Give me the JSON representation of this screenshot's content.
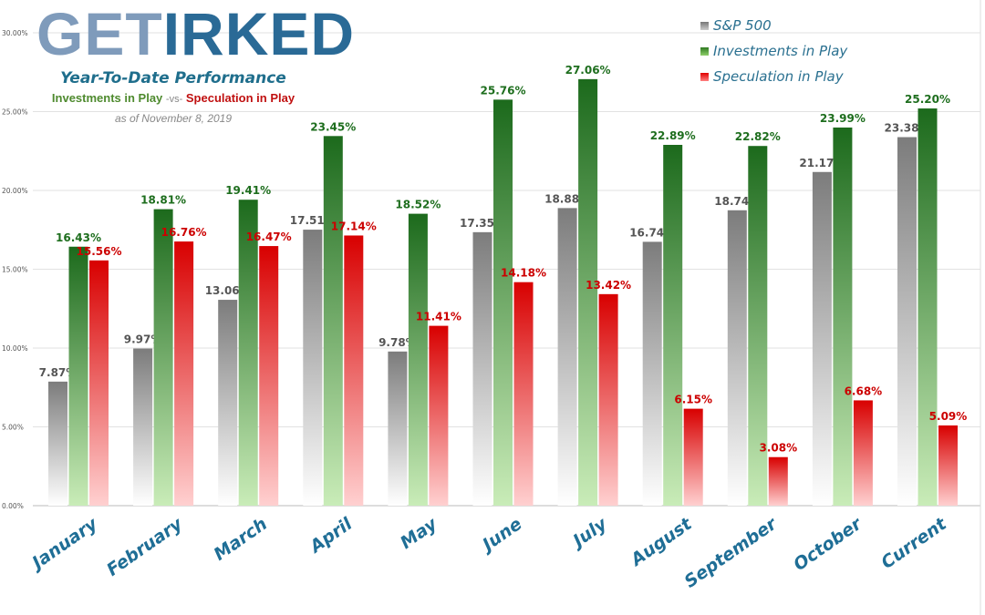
{
  "logo": {
    "text": "GetIRKED"
  },
  "header": {
    "subtitle": "Year-To-Date Performance",
    "investments_label": "Investments in Play",
    "vs": "-vs-",
    "speculation_label": "Speculation in Play",
    "as_of": "as of November 8, 2019"
  },
  "chart_data": {
    "type": "bar",
    "title": "Year-To-Date Performance",
    "categories": [
      "January",
      "February",
      "March",
      "April",
      "May",
      "June",
      "July",
      "August",
      "September",
      "October",
      "Current"
    ],
    "series": [
      {
        "name": "S&P 500",
        "color": "#8a8a8a",
        "values": [
          7.87,
          9.97,
          13.06,
          17.51,
          9.78,
          17.35,
          18.88,
          16.74,
          18.74,
          21.17,
          23.38
        ],
        "label_color": "#555555"
      },
      {
        "name": "Investments in Play",
        "color": "#2f8a2a",
        "values": [
          16.43,
          18.81,
          19.41,
          23.45,
          18.52,
          25.76,
          27.06,
          22.89,
          22.82,
          23.99,
          25.2
        ],
        "label_color": "#1e6e1e"
      },
      {
        "name": "Speculation in Play",
        "color": "#e00000",
        "values": [
          15.56,
          16.76,
          16.47,
          17.14,
          11.41,
          14.18,
          13.42,
          6.15,
          3.08,
          6.68,
          5.09
        ],
        "label_color": "#cc0000"
      }
    ],
    "ylim": [
      0,
      30
    ],
    "yticks": [
      "0.00%",
      "5.00%",
      "10.00%",
      "15.00%",
      "20.00%",
      "25.00%",
      "30.00%"
    ],
    "value_format": "percent, 2 decimals",
    "grid": true,
    "legend_position": "top-right"
  }
}
